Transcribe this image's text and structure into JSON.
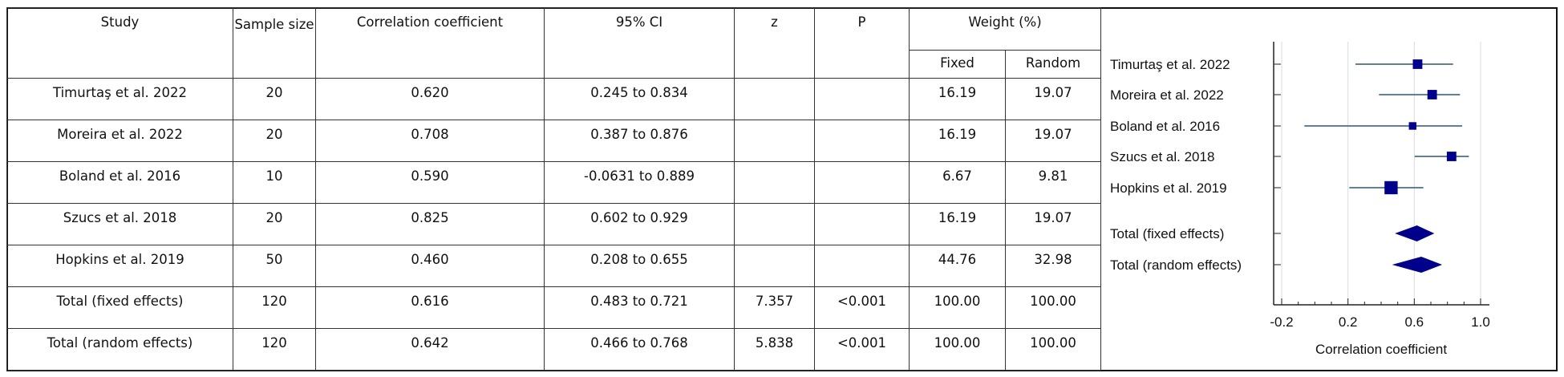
{
  "table": {
    "headers": {
      "study": "Study",
      "sample_size": "Sample size",
      "correlation": "Correlation coefficient",
      "ci": "95% CI",
      "z": "z",
      "p": "P",
      "weight": "Weight (%)",
      "fixed": "Fixed",
      "random": "Random"
    },
    "rows": [
      {
        "study": "Timurtaş et al. 2022",
        "n": "20",
        "r": "0.620",
        "ci": "0.245 to 0.834",
        "z": "",
        "p": "",
        "fixed": "16.19",
        "random": "19.07"
      },
      {
        "study": "Moreira et al. 2022",
        "n": "20",
        "r": "0.708",
        "ci": "0.387 to 0.876",
        "z": "",
        "p": "",
        "fixed": "16.19",
        "random": "19.07"
      },
      {
        "study": "Boland et al. 2016",
        "n": "10",
        "r": "0.590",
        "ci": "-0.0631 to 0.889",
        "z": "",
        "p": "",
        "fixed": "6.67",
        "random": "9.81"
      },
      {
        "study": "Szucs et al. 2018",
        "n": "20",
        "r": "0.825",
        "ci": "0.602 to 0.929",
        "z": "",
        "p": "",
        "fixed": "16.19",
        "random": "19.07"
      },
      {
        "study": "Hopkins et al. 2019",
        "n": "50",
        "r": "0.460",
        "ci": "0.208 to 0.655",
        "z": "",
        "p": "",
        "fixed": "44.76",
        "random": "32.98"
      },
      {
        "study": "Total (fixed effects)",
        "n": "120",
        "r": "0.616",
        "ci": "0.483 to 0.721",
        "z": "7.357",
        "p": "<0.001",
        "fixed": "100.00",
        "random": "100.00"
      },
      {
        "study": "Total (random effects)",
        "n": "120",
        "r": "0.642",
        "ci": "0.466 to 0.768",
        "z": "5.838",
        "p": "<0.001",
        "fixed": "100.00",
        "random": "100.00"
      }
    ]
  },
  "chart_data": {
    "type": "forest",
    "xlabel": "Correlation coefficient",
    "xlim": [
      -0.25,
      1.05
    ],
    "xticks": [
      "-0.2",
      "0.2",
      "0.6",
      "1.0"
    ],
    "grid": true,
    "marker_color": "#00008b",
    "ci_color": "#4a6d8c",
    "studies": [
      {
        "label": "Timurtaş et al. 2022",
        "r": 0.62,
        "lo": 0.245,
        "hi": 0.834,
        "weight": 16.19
      },
      {
        "label": "Moreira et al. 2022",
        "r": 0.708,
        "lo": 0.387,
        "hi": 0.876,
        "weight": 16.19
      },
      {
        "label": "Boland et al. 2016",
        "r": 0.59,
        "lo": -0.0631,
        "hi": 0.889,
        "weight": 6.67
      },
      {
        "label": "Szucs et al. 2018",
        "r": 0.825,
        "lo": 0.602,
        "hi": 0.929,
        "weight": 16.19
      },
      {
        "label": "Hopkins et al. 2019",
        "r": 0.46,
        "lo": 0.208,
        "hi": 0.655,
        "weight": 44.76
      }
    ],
    "totals": [
      {
        "label": "Total (fixed effects)",
        "r": 0.616,
        "lo": 0.483,
        "hi": 0.721
      },
      {
        "label": "Total (random effects)",
        "r": 0.642,
        "lo": 0.466,
        "hi": 0.768
      }
    ]
  }
}
